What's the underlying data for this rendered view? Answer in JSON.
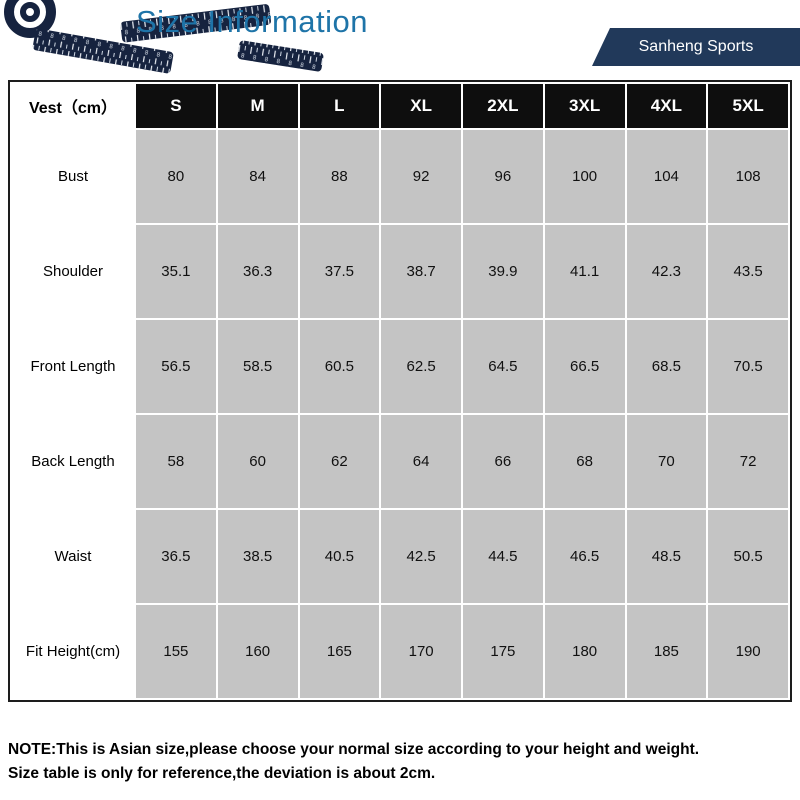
{
  "header": {
    "title": "Size Information",
    "brand": "Sanheng Sports"
  },
  "colors": {
    "title_blue": "#1e74a8",
    "banner_navy": "#21395a",
    "header_black": "#0e0e0e",
    "cell_gray": "#c4c4c4",
    "tape_navy": "#16233f"
  },
  "table": {
    "unit_header": "Vest（cm）",
    "sizes": [
      "S",
      "M",
      "L",
      "XL",
      "2XL",
      "3XL",
      "4XL",
      "5XL"
    ],
    "rows": [
      {
        "label": "Bust",
        "values": [
          "80",
          "84",
          "88",
          "92",
          "96",
          "100",
          "104",
          "108"
        ]
      },
      {
        "label": "Shoulder",
        "values": [
          "35.1",
          "36.3",
          "37.5",
          "38.7",
          "39.9",
          "41.1",
          "42.3",
          "43.5"
        ]
      },
      {
        "label": "Front Length",
        "values": [
          "56.5",
          "58.5",
          "60.5",
          "62.5",
          "64.5",
          "66.5",
          "68.5",
          "70.5"
        ]
      },
      {
        "label": "Back Length",
        "values": [
          "58",
          "60",
          "62",
          "64",
          "66",
          "68",
          "70",
          "72"
        ]
      },
      {
        "label": "Waist",
        "values": [
          "36.5",
          "38.5",
          "40.5",
          "42.5",
          "44.5",
          "46.5",
          "48.5",
          "50.5"
        ]
      },
      {
        "label": "Fit Height(cm)",
        "values": [
          "155",
          "160",
          "165",
          "170",
          "175",
          "180",
          "185",
          "190"
        ]
      }
    ]
  },
  "note": {
    "text": "NOTE:This is Asian size,please choose your normal size according to your height and weight.\nSize table is only for reference,the deviation is about 2cm."
  }
}
